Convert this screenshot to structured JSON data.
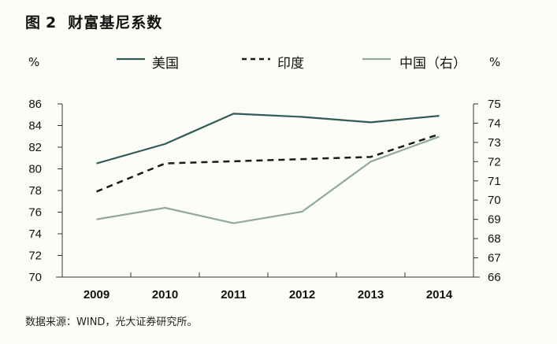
{
  "figure": {
    "label": "图",
    "number": "2",
    "title": "财富基尼系数",
    "source": "数据来源：WIND，光大证券研究所。"
  },
  "chart_data": {
    "type": "line",
    "x": [
      "2009",
      "2010",
      "2011",
      "2012",
      "2013",
      "2014"
    ],
    "left_axis": {
      "unit": "%",
      "ylim": [
        70,
        86
      ],
      "ticks": [
        70,
        72,
        74,
        76,
        78,
        80,
        82,
        84,
        86
      ]
    },
    "right_axis": {
      "unit": "%",
      "ylim": [
        66,
        75
      ],
      "ticks": [
        66,
        67,
        68,
        69,
        70,
        71,
        72,
        73,
        74,
        75
      ]
    },
    "series": [
      {
        "name": "美国",
        "axis": "left",
        "style": "solid",
        "color": "#2e5a58",
        "values": [
          80.5,
          82.3,
          85.1,
          84.8,
          84.3,
          84.9
        ]
      },
      {
        "name": "印度",
        "axis": "left",
        "style": "dashed",
        "color": "#1a1a1a",
        "values": [
          77.9,
          80.5,
          80.7,
          80.9,
          81.1,
          83.2
        ]
      },
      {
        "name": "中国（右）",
        "axis": "right",
        "style": "solid",
        "color": "#8fa8a0",
        "values": [
          69.0,
          69.6,
          68.8,
          69.4,
          72.0,
          73.3
        ]
      }
    ],
    "grid": false,
    "legend_position": "top"
  }
}
